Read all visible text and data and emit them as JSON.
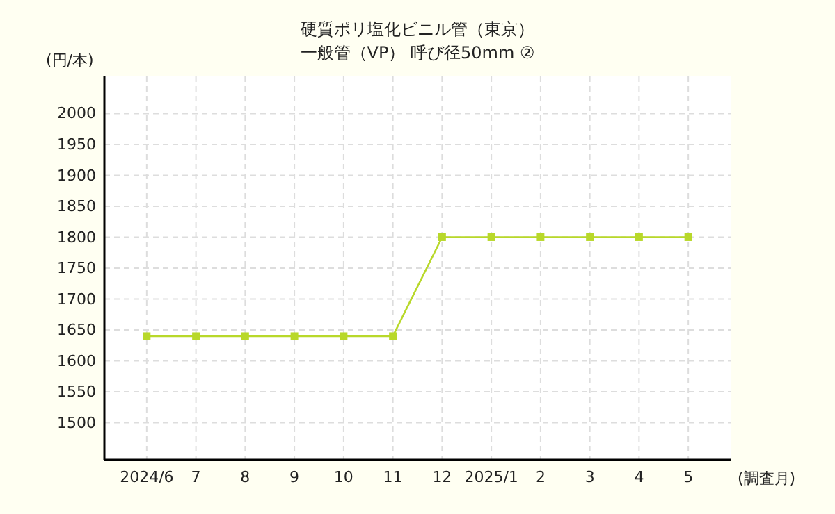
{
  "chart_data": {
    "type": "line",
    "title": "硬質ポリ塩化ビニル管（東京）",
    "subtitle": "一般管（VP） 呼び径50mm ②",
    "ylabel": "(円/本)",
    "xlabel": "(調査月)",
    "categories": [
      "2024/6",
      "7",
      "8",
      "9",
      "10",
      "11",
      "12",
      "2025/1",
      "2",
      "3",
      "4",
      "5"
    ],
    "series": [
      {
        "color": "#b8d82a",
        "values": [
          1640,
          1640,
          1640,
          1640,
          1640,
          1640,
          1800,
          1800,
          1800,
          1800,
          1800,
          1800
        ]
      }
    ],
    "ylim": [
      1440,
      2060
    ],
    "yticks": [
      1500,
      1550,
      1600,
      1650,
      1700,
      1750,
      1800,
      1850,
      1900,
      1950,
      2000
    ],
    "grid": true,
    "marker": "square",
    "line_style": "solid"
  }
}
